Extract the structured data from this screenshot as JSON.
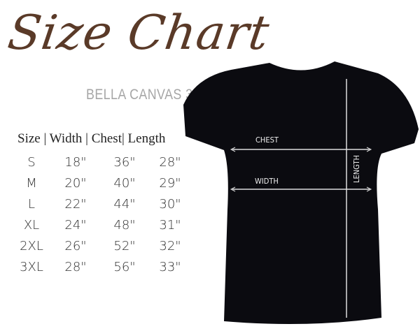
{
  "title": "Size Chart",
  "subtitle": "BELLA CANVAS 3001",
  "table": {
    "header": "Size | Width | Chest| Length",
    "rows": [
      {
        "size": "S",
        "width": "18\"",
        "chest": "36\"",
        "length": "28\""
      },
      {
        "size": "M",
        "width": "20\"",
        "chest": "40\"",
        "length": "29\""
      },
      {
        "size": "L",
        "width": "22\"",
        "chest": "44\"",
        "length": "30\""
      },
      {
        "size": "XL",
        "width": "24\"",
        "chest": "48\"",
        "length": "31\""
      },
      {
        "size": "2XL",
        "width": "26\"",
        "chest": "52\"",
        "length": "32\""
      },
      {
        "size": "3XL",
        "width": "28\"",
        "chest": "56\"",
        "length": "33\""
      }
    ]
  },
  "diagram": {
    "chest_label": "CHEST",
    "width_label": "WIDTH",
    "length_label": "LENGTH"
  },
  "colors": {
    "title": "#5a3a28",
    "subtitle": "#a6a6a6",
    "shirt": "#0b0b10"
  }
}
